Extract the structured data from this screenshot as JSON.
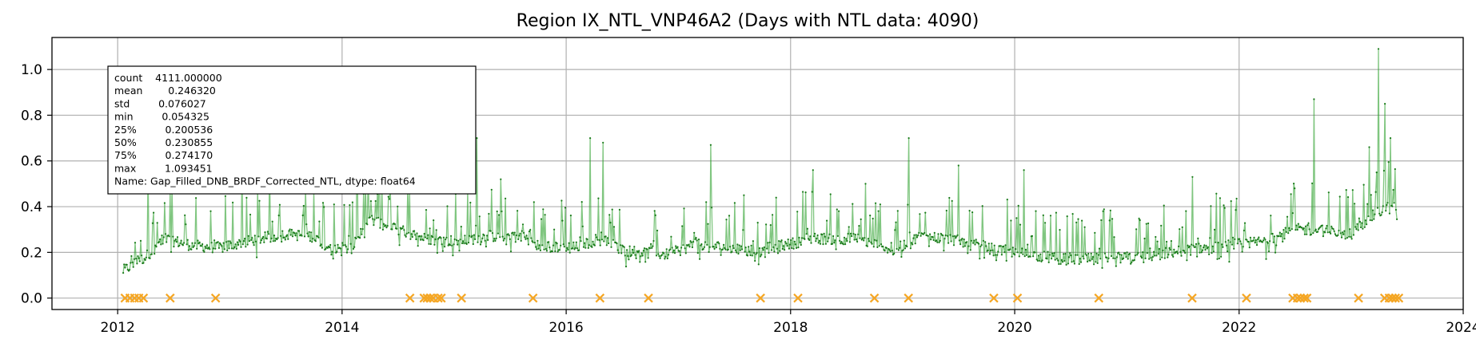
{
  "chart_data": {
    "type": "line",
    "title": "Region IX_NTL_VNP46A2 (Days with NTL data: 4090)",
    "xlabel": "",
    "ylabel": "",
    "x_axis": "date",
    "xlim": [
      "2011-06-01",
      "2024-01-01"
    ],
    "ylim": [
      -0.05,
      1.14
    ],
    "x_tick_labels": [
      "2012",
      "2014",
      "2016",
      "2018",
      "2020",
      "2022",
      "2024"
    ],
    "y_tick_labels": [
      "0.0",
      "0.2",
      "0.4",
      "0.6",
      "0.8",
      "1.0"
    ],
    "y_ticks": [
      0.0,
      0.2,
      0.4,
      0.6,
      0.8,
      1.0
    ],
    "grid": true,
    "line_color": "#2ca02c",
    "dot_color": "#1a7a1a",
    "marker_color": "#f5a623",
    "series": [
      {
        "values_kind": "daily Gap_Filled_DNB_BRDF_Corrected_NTL",
        "start_date": "2012-01-19",
        "end_date": "2023-06-01",
        "baseline": [
          [
            "2012-01-19",
            0.12
          ],
          [
            "2012-04-01",
            0.18
          ],
          [
            "2012-06-01",
            0.26
          ],
          [
            "2012-09-01",
            0.23
          ],
          [
            "2012-12-01",
            0.22
          ],
          [
            "2013-03-01",
            0.25
          ],
          [
            "2013-07-01",
            0.28
          ],
          [
            "2013-10-01",
            0.27
          ],
          [
            "2013-12-01",
            0.21
          ],
          [
            "2014-02-01",
            0.22
          ],
          [
            "2014-04-01",
            0.34
          ],
          [
            "2014-07-01",
            0.3
          ],
          [
            "2014-10-01",
            0.26
          ],
          [
            "2015-01-01",
            0.25
          ],
          [
            "2015-05-01",
            0.27
          ],
          [
            "2015-08-01",
            0.28
          ],
          [
            "2015-10-01",
            0.23
          ],
          [
            "2016-02-01",
            0.22
          ],
          [
            "2016-05-01",
            0.27
          ],
          [
            "2016-07-01",
            0.21
          ],
          [
            "2016-12-01",
            0.19
          ],
          [
            "2017-03-01",
            0.24
          ],
          [
            "2017-06-01",
            0.22
          ],
          [
            "2017-10-01",
            0.2
          ],
          [
            "2018-03-01",
            0.26
          ],
          [
            "2018-08-01",
            0.26
          ],
          [
            "2018-12-01",
            0.21
          ],
          [
            "2019-03-01",
            0.27
          ],
          [
            "2019-06-01",
            0.26
          ],
          [
            "2019-10-01",
            0.22
          ],
          [
            "2020-01-01",
            0.2
          ],
          [
            "2020-06-01",
            0.17
          ],
          [
            "2020-09-01",
            0.17
          ],
          [
            "2021-03-01",
            0.18
          ],
          [
            "2021-07-01",
            0.21
          ],
          [
            "2021-10-01",
            0.22
          ],
          [
            "2022-04-01",
            0.25
          ],
          [
            "2022-07-01",
            0.3
          ],
          [
            "2022-09-01",
            0.3
          ],
          [
            "2023-01-01",
            0.28
          ],
          [
            "2023-03-01",
            0.35
          ],
          [
            "2023-05-01",
            0.4
          ],
          [
            "2023-06-01",
            0.36
          ]
        ],
        "spikes": [
          [
            "2012-04-10",
            0.57
          ],
          [
            "2012-06-20",
            0.47
          ],
          [
            "2013-02-10",
            0.57
          ],
          [
            "2013-05-10",
            0.58
          ],
          [
            "2014-02-20",
            0.76
          ],
          [
            "2014-05-01",
            0.68
          ],
          [
            "2015-03-15",
            0.7
          ],
          [
            "2015-06-01",
            0.52
          ],
          [
            "2016-03-20",
            0.7
          ],
          [
            "2016-05-01",
            0.68
          ],
          [
            "2017-04-15",
            0.67
          ],
          [
            "2017-08-01",
            0.45
          ],
          [
            "2018-03-15",
            0.56
          ],
          [
            "2018-09-01",
            0.5
          ],
          [
            "2019-01-20",
            0.7
          ],
          [
            "2019-07-01",
            0.58
          ],
          [
            "2020-02-01",
            0.56
          ],
          [
            "2021-08-01",
            0.53
          ],
          [
            "2022-07-01",
            0.48
          ],
          [
            "2022-09-01",
            0.87
          ],
          [
            "2023-03-01",
            0.66
          ],
          [
            "2023-04-01",
            1.09
          ],
          [
            "2023-04-20",
            0.85
          ],
          [
            "2023-05-10",
            0.7
          ]
        ]
      }
    ],
    "missing_day_markers": {
      "y": 0.0,
      "symbol": "x",
      "dates": [
        "2012-01-25",
        "2012-02-10",
        "2012-02-25",
        "2012-03-10",
        "2012-03-25",
        "2012-06-20",
        "2012-11-15",
        "2014-08-10",
        "2014-09-25",
        "2014-10-05",
        "2014-10-15",
        "2014-10-25",
        "2014-11-10",
        "2014-11-20",
        "2015-01-25",
        "2015-09-15",
        "2016-04-20",
        "2016-09-25",
        "2017-09-25",
        "2018-01-25",
        "2018-10-01",
        "2019-01-20",
        "2019-10-25",
        "2020-01-10",
        "2020-10-01",
        "2021-08-01",
        "2022-01-25",
        "2022-06-25",
        "2022-07-10",
        "2022-07-20",
        "2022-08-01",
        "2022-08-10",
        "2023-01-25",
        "2023-04-20",
        "2023-05-05",
        "2023-05-15",
        "2023-05-25",
        "2023-06-05"
      ]
    },
    "stats_box": {
      "rows": [
        "count    4111.000000",
        "mean        0.246320",
        "std         0.076027",
        "min         0.054325",
        "25%         0.200536",
        "50%         0.230855",
        "75%         0.274170",
        "max         1.093451",
        "Name: Gap_Filled_DNB_BRDF_Corrected_NTL, dtype: float64"
      ]
    }
  }
}
